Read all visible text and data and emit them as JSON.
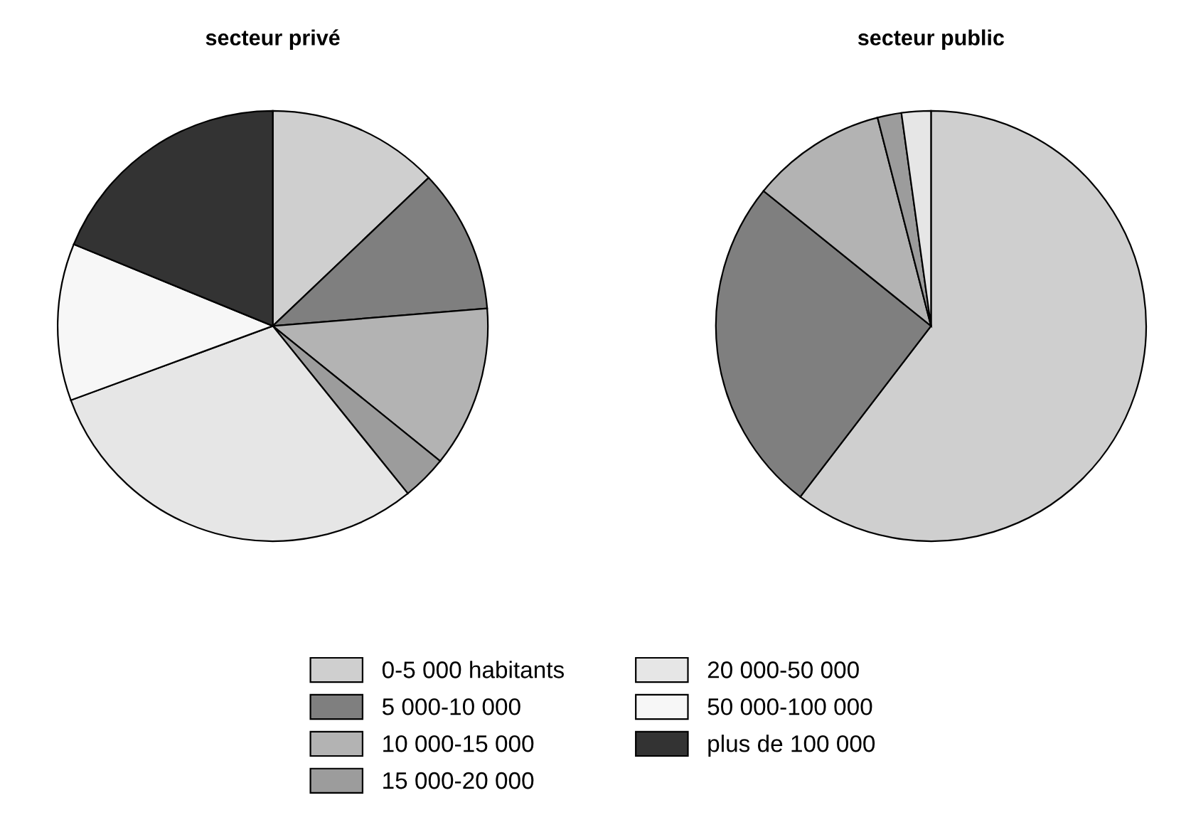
{
  "chart_data": [
    {
      "type": "pie",
      "title": "secteur privé",
      "categories": [
        "0-5 000 habitants",
        "5 000-10 000",
        "10 000-15 000",
        "15 000-20 000",
        "20 000-50 000",
        "50 000-100 000",
        "plus de 100 000"
      ],
      "values": [
        12.9,
        10.8,
        12.1,
        3.4,
        30.2,
        11.8,
        18.8
      ],
      "colors": [
        "#cfcfcf",
        "#7f7f7f",
        "#b3b3b3",
        "#9c9c9c",
        "#e6e6e6",
        "#f7f7f7",
        "#333333"
      ],
      "legend": "bottom"
    },
    {
      "type": "pie",
      "title": "secteur public",
      "categories": [
        null,
        null,
        null,
        null,
        null
      ],
      "values": [
        60.4,
        25.4,
        10.2,
        1.8,
        2.2
      ],
      "colors": [
        "#cfcfcf",
        "#7f7f7f",
        "#b3b3b3",
        "#9c9c9c",
        "#e6e6e6"
      ]
    }
  ]
}
